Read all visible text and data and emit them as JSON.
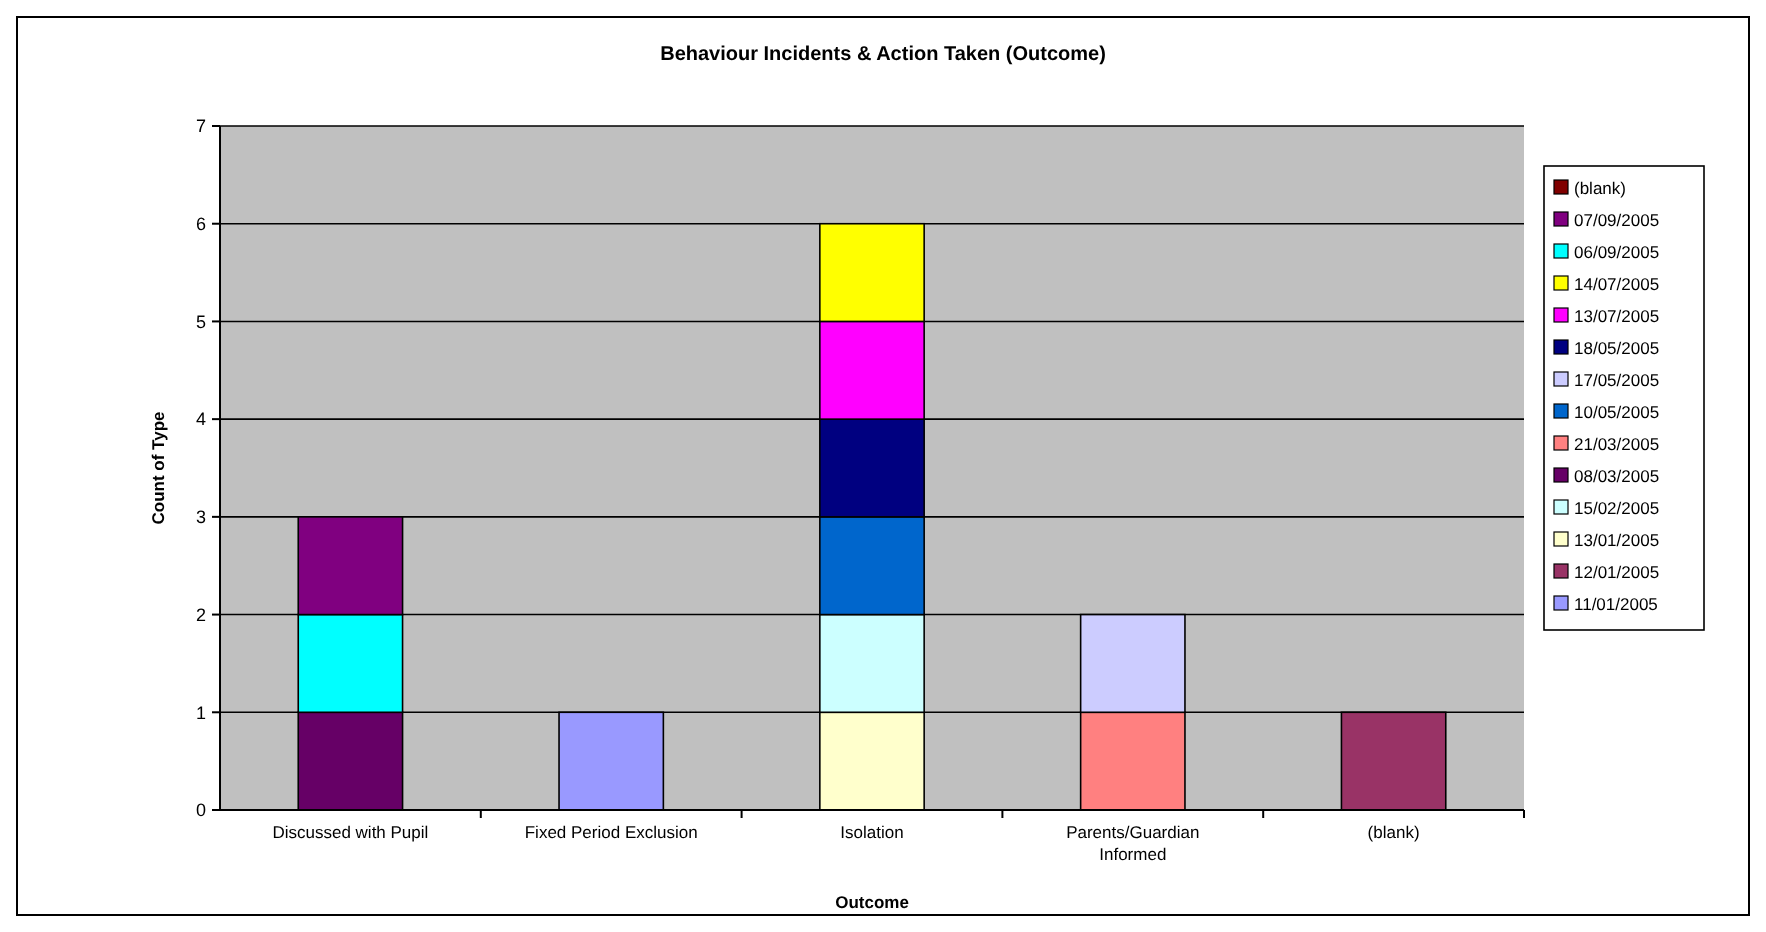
{
  "chart_data": {
    "type": "bar",
    "title": "Behaviour Incidents & Action Taken (Outcome)",
    "xlabel": "Outcome",
    "ylabel": "Count of Type",
    "categories": [
      "Discussed with Pupil",
      "Fixed Period Exclusion",
      "Isolation",
      "Parents/Guardian Informed",
      "(blank)"
    ],
    "stacked": true,
    "ylim": [
      0,
      7
    ],
    "yticks": [
      0,
      1,
      2,
      3,
      4,
      5,
      6,
      7
    ],
    "grid": "y",
    "legend": "right",
    "series": [
      {
        "name": "11/01/2005",
        "color": "#9999ff",
        "values": [
          null,
          1,
          null,
          null,
          null
        ]
      },
      {
        "name": "12/01/2005",
        "color": "#993366",
        "values": [
          null,
          null,
          null,
          null,
          1
        ]
      },
      {
        "name": "13/01/2005",
        "color": "#ffffcc",
        "values": [
          null,
          null,
          1,
          null,
          null
        ]
      },
      {
        "name": "15/02/2005",
        "color": "#ccffff",
        "values": [
          null,
          null,
          1,
          null,
          null
        ]
      },
      {
        "name": "08/03/2005",
        "color": "#660066",
        "values": [
          1,
          null,
          null,
          null,
          null
        ]
      },
      {
        "name": "21/03/2005",
        "color": "#ff8080",
        "values": [
          null,
          null,
          null,
          1,
          null
        ]
      },
      {
        "name": "10/05/2005",
        "color": "#0066cc",
        "values": [
          null,
          null,
          1,
          null,
          null
        ]
      },
      {
        "name": "17/05/2005",
        "color": "#ccccff",
        "values": [
          null,
          null,
          null,
          1,
          null
        ]
      },
      {
        "name": "18/05/2005",
        "color": "#000080",
        "values": [
          null,
          null,
          1,
          null,
          null
        ]
      },
      {
        "name": "13/07/2005",
        "color": "#ff00ff",
        "values": [
          null,
          null,
          1,
          null,
          null
        ]
      },
      {
        "name": "14/07/2005",
        "color": "#ffff00",
        "values": [
          null,
          null,
          1,
          null,
          null
        ]
      },
      {
        "name": "06/09/2005",
        "color": "#00ffff",
        "values": [
          1,
          null,
          null,
          null,
          null
        ]
      },
      {
        "name": "07/09/2005",
        "color": "#800080",
        "values": [
          1,
          null,
          null,
          null,
          null
        ]
      },
      {
        "name": "(blank)",
        "color": "#800000",
        "values": [
          null,
          null,
          null,
          null,
          null
        ]
      }
    ]
  }
}
